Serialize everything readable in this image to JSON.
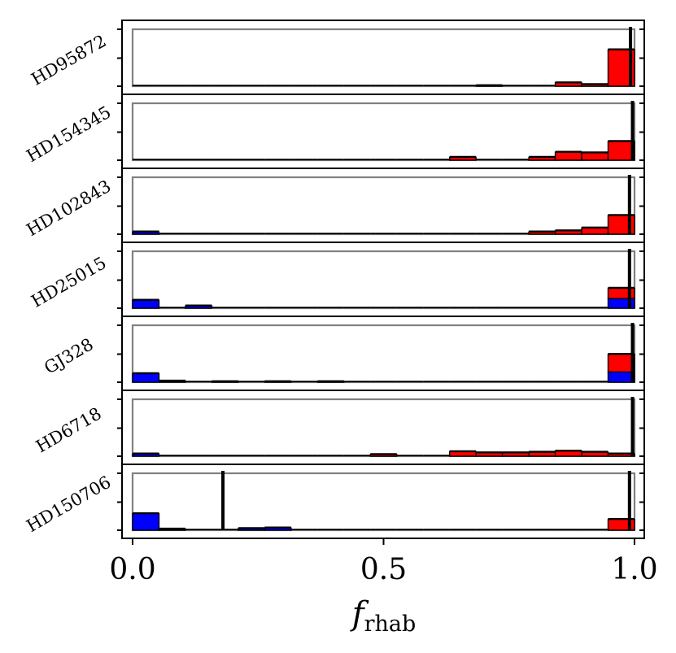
{
  "chart_data": {
    "type": "bar",
    "xlabel": "f",
    "xlabel_subscript": "rhab",
    "xlim": [
      0.0,
      1.0
    ],
    "xticks": [
      "0.0",
      "0.5",
      "1.0"
    ],
    "bins": 19,
    "colors": {
      "red": "#ff0000",
      "blue": "#0000ff",
      "outline": "#000000",
      "box": "#808080"
    },
    "panels": [
      {
        "name": "HD95872",
        "red": [
          0,
          0,
          0,
          0,
          0,
          0,
          0,
          0,
          0,
          0,
          0,
          0,
          0,
          0.01,
          0,
          0,
          0.06,
          0.03,
          0.64
        ],
        "blue": [
          0,
          0,
          0,
          0,
          0,
          0,
          0,
          0,
          0,
          0,
          0,
          0,
          0,
          0,
          0,
          0,
          0,
          0,
          0
        ],
        "markers": [
          0.992
        ]
      },
      {
        "name": "HD154345",
        "red": [
          0,
          0,
          0,
          0,
          0,
          0,
          0,
          0,
          0,
          0,
          0,
          0,
          0.05,
          0,
          0,
          0.05,
          0.14,
          0.13,
          0.33
        ],
        "blue": [
          0,
          0,
          0,
          0,
          0,
          0,
          0,
          0,
          0,
          0,
          0,
          0,
          0,
          0,
          0,
          0,
          0,
          0,
          0
        ],
        "markers": [
          0.996
        ]
      },
      {
        "name": "HD102843",
        "red": [
          0,
          0,
          0,
          0,
          0,
          0,
          0,
          0,
          0,
          0,
          0,
          0,
          0,
          0,
          0,
          0.04,
          0.06,
          0.11,
          0.33
        ],
        "blue": [
          0.04,
          0,
          0,
          0,
          0,
          0,
          0,
          0,
          0,
          0,
          0,
          0,
          0,
          0,
          0,
          0,
          0,
          0,
          0
        ],
        "markers": [
          0.99
        ]
      },
      {
        "name": "HD25015",
        "red": [
          0,
          0,
          0,
          0,
          0,
          0,
          0,
          0,
          0,
          0,
          0,
          0,
          0,
          0,
          0,
          0,
          0,
          0,
          0.18
        ],
        "blue": [
          0.14,
          0,
          0.04,
          0,
          0,
          0,
          0,
          0,
          0,
          0,
          0,
          0,
          0,
          0,
          0,
          0,
          0,
          0,
          0.17
        ],
        "markers": [
          0.99
        ]
      },
      {
        "name": "GJ328",
        "red": [
          0,
          0,
          0,
          0,
          0,
          0,
          0,
          0,
          0,
          0,
          0,
          0,
          0,
          0,
          0,
          0,
          0,
          0,
          0.31
        ],
        "blue": [
          0.15,
          0.02,
          0,
          0.01,
          0,
          0.01,
          0,
          0.01,
          0,
          0,
          0,
          0,
          0,
          0,
          0,
          0,
          0,
          0,
          0.18
        ],
        "markers": [
          0.996
        ]
      },
      {
        "name": "HD6718",
        "red": [
          0,
          0,
          0,
          0,
          0,
          0,
          0,
          0,
          0,
          0.03,
          0,
          0,
          0.08,
          0.06,
          0.06,
          0.07,
          0.09,
          0.07,
          0.04
        ],
        "blue": [
          0.04,
          0,
          0,
          0,
          0,
          0,
          0,
          0,
          0,
          0,
          0,
          0,
          0,
          0,
          0,
          0,
          0,
          0,
          0
        ],
        "markers": [
          0.996
        ]
      },
      {
        "name": "HD150706",
        "red": [
          0,
          0,
          0,
          0,
          0,
          0,
          0,
          0,
          0,
          0,
          0,
          0,
          0,
          0,
          0,
          0,
          0,
          0,
          0.19
        ],
        "blue": [
          0.29,
          0.02,
          0,
          0,
          0.03,
          0.04,
          0,
          0,
          0,
          0,
          0,
          0,
          0,
          0,
          0,
          0,
          0,
          0,
          0
        ],
        "markers": [
          0.18,
          0.99
        ]
      }
    ]
  }
}
